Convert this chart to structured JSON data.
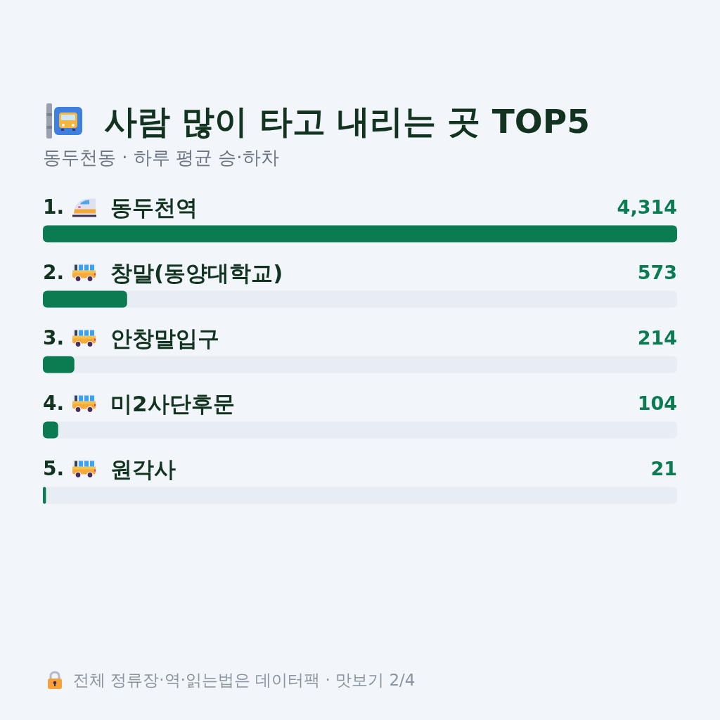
{
  "chart_data": {
    "type": "bar",
    "orientation": "horizontal",
    "title": "사람 많이 타고 내리는 곳 TOP5",
    "subtitle": "동두천동 · 하루 평균 승·하차",
    "categories": [
      "1. 동두천역",
      "2. 창말(동양대학교)",
      "3. 안창말입구",
      "4. 미2사단후문",
      "5. 원각사"
    ],
    "values": [
      4314,
      573,
      214,
      104,
      21
    ],
    "color": "#0b7b52",
    "value_labels": [
      "4,314",
      "573",
      "214",
      "104",
      "21"
    ],
    "annotations": [
      "전체 정류장·역·읽는법은 데이터팩 · 맛보기 2/4"
    ]
  }
}
